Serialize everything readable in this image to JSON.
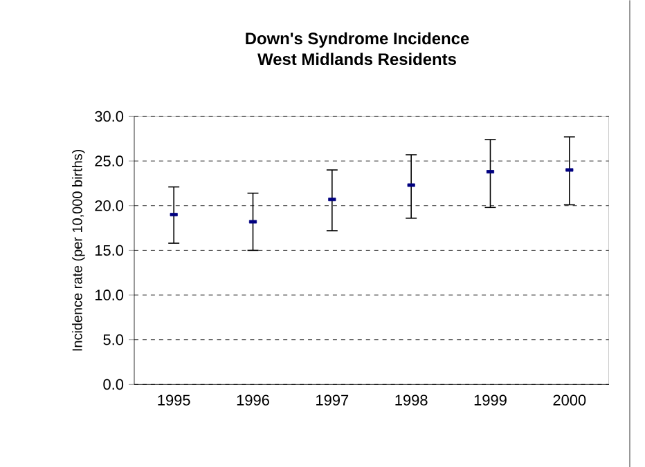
{
  "chart_data": {
    "type": "scatter",
    "title": "Down's Syndrome Incidence",
    "subtitle": "West Midlands Residents",
    "ylabel": "Incidence rate (per 10,000 births)",
    "categories": [
      "1995",
      "1996",
      "1997",
      "1998",
      "1999",
      "2000"
    ],
    "values": [
      19.0,
      18.2,
      20.7,
      22.3,
      23.8,
      24.0
    ],
    "errors": [
      [
        15.8,
        22.1
      ],
      [
        15.0,
        21.4
      ],
      [
        17.2,
        24.0
      ],
      [
        18.6,
        25.7
      ],
      [
        19.8,
        27.4
      ],
      [
        20.1,
        27.7
      ]
    ],
    "color": "#000080",
    "ylim": [
      0,
      30
    ],
    "yticks": [
      {
        "value": 0,
        "label": "0.0"
      },
      {
        "value": 5,
        "label": "5.0"
      },
      {
        "value": 10,
        "label": "10.0"
      },
      {
        "value": 15,
        "label": "15.0"
      },
      {
        "value": 20,
        "label": "20.0"
      },
      {
        "value": 25,
        "label": "25.0"
      },
      {
        "value": 30,
        "label": "30.0"
      }
    ],
    "grid": "y",
    "marker": "square"
  }
}
